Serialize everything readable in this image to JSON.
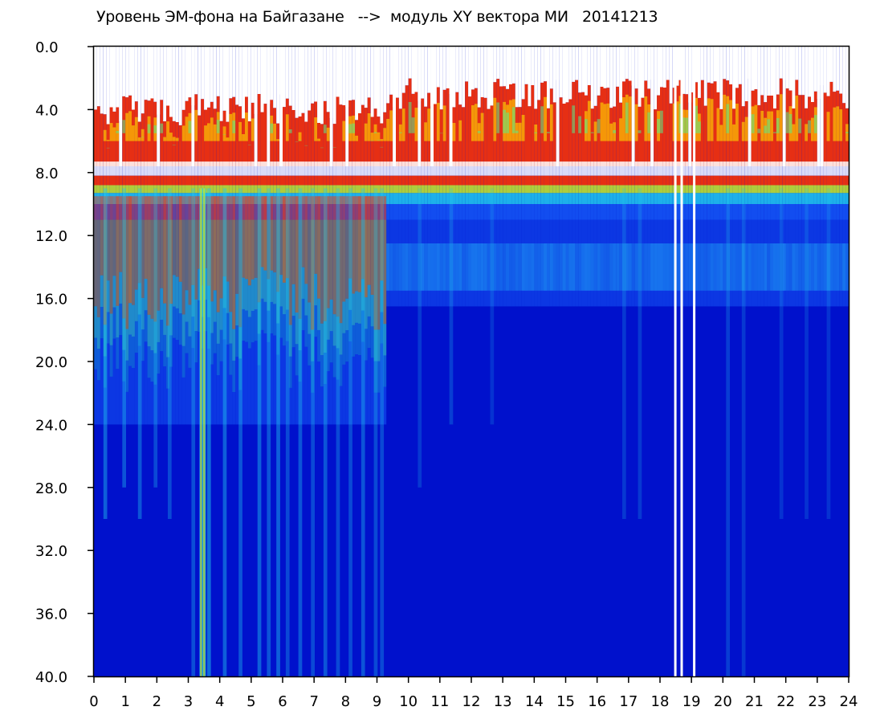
{
  "chart_data": {
    "type": "heatmap",
    "title": "Уровень ЭМ-фона на Байгазане   -->  модуль XY вектора МИ   20141213",
    "xlabel": "",
    "ylabel": "",
    "xlim": [
      0,
      24
    ],
    "ylim": [
      40.0,
      0.0
    ],
    "x_ticks": [
      "0",
      "1",
      "2",
      "3",
      "4",
      "5",
      "6",
      "7",
      "8",
      "9",
      "10",
      "11",
      "12",
      "13",
      "14",
      "15",
      "16",
      "17",
      "18",
      "19",
      "20",
      "21",
      "22",
      "23",
      "24"
    ],
    "y_ticks": [
      "0.0",
      "4.0",
      "8.0",
      "12.0",
      "16.0",
      "20.0",
      "24.0",
      "28.0",
      "32.0",
      "36.0",
      "40.0"
    ],
    "colormap": [
      "#0011cc",
      "#1a66ff",
      "#22ccee",
      "#55ee88",
      "#ccee22",
      "#ffdd00",
      "#ff3300"
    ],
    "background": "#ffffff",
    "grid": false,
    "legend": "none"
  }
}
